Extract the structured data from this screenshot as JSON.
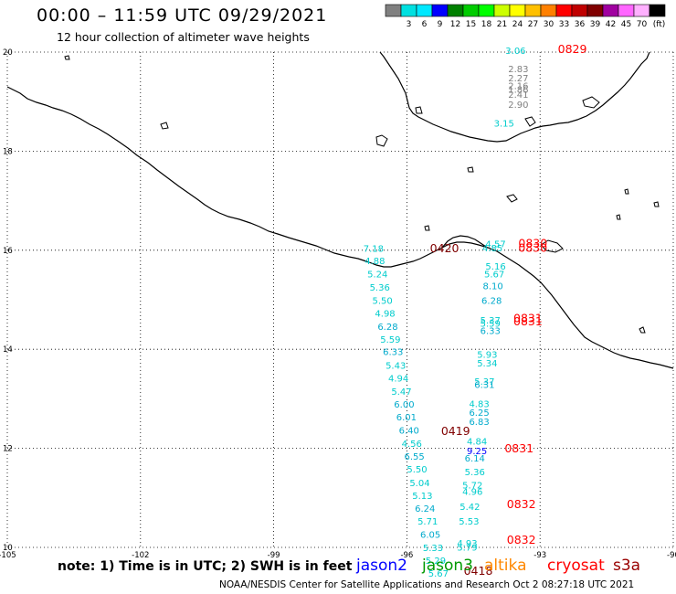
{
  "header": {
    "title": "00:00 – 11:59 UTC 09/29/2021",
    "subtitle": "12 hour collection of altimeter wave heights"
  },
  "colorbar": {
    "bins": [
      {
        "color": "#808080",
        "label": ""
      },
      {
        "color": "#00e0e0",
        "label": "3"
      },
      {
        "color": "#00e8ff",
        "label": "6"
      },
      {
        "color": "#0000ff",
        "label": "9"
      },
      {
        "color": "#008000",
        "label": "12"
      },
      {
        "color": "#00cc00",
        "label": "15"
      },
      {
        "color": "#00ff00",
        "label": "18"
      },
      {
        "color": "#ccff00",
        "label": "21"
      },
      {
        "color": "#ffff00",
        "label": "24"
      },
      {
        "color": "#ffc000",
        "label": "27"
      },
      {
        "color": "#ff8000",
        "label": "30"
      },
      {
        "color": "#ff0000",
        "label": "33"
      },
      {
        "color": "#c00000",
        "label": "36"
      },
      {
        "color": "#800000",
        "label": "39"
      },
      {
        "color": "#a000a0",
        "label": "42"
      },
      {
        "color": "#ff66ff",
        "label": "45"
      },
      {
        "color": "#ffb0ff",
        "label": "70"
      },
      {
        "color": "#000000",
        "label": "(ft)"
      }
    ]
  },
  "axes": {
    "lon_ticks": [
      {
        "value": -105,
        "label": "-105"
      },
      {
        "value": -102,
        "label": "-102"
      },
      {
        "value": -99,
        "label": "-99"
      },
      {
        "value": -96,
        "label": "-96"
      },
      {
        "value": -93,
        "label": "-93"
      },
      {
        "value": -90,
        "label": "-90"
      }
    ],
    "lat_ticks": [
      {
        "value": 10,
        "label": "10"
      },
      {
        "value": 12,
        "label": "12"
      },
      {
        "value": 14,
        "label": "14"
      },
      {
        "value": 16,
        "label": "16"
      },
      {
        "value": 18,
        "label": "18"
      },
      {
        "value": 20,
        "label": "20"
      }
    ]
  },
  "observations": [
    {
      "lon": -93.78,
      "lat": 19.96,
      "v": "3.06",
      "c": "#00cccc"
    },
    {
      "lon": -93.72,
      "lat": 19.59,
      "v": "2.83",
      "c": "#808080"
    },
    {
      "lon": -93.72,
      "lat": 19.41,
      "v": "2.27",
      "c": "#808080"
    },
    {
      "lon": -93.72,
      "lat": 19.25,
      "v": "2.16",
      "c": "#808080"
    },
    {
      "lon": -93.72,
      "lat": 19.18,
      "v": "1.86",
      "c": "#808080"
    },
    {
      "lon": -93.72,
      "lat": 19.08,
      "v": "2.41",
      "c": "#808080"
    },
    {
      "lon": -93.72,
      "lat": 18.87,
      "v": "2.90",
      "c": "#808080"
    },
    {
      "lon": -94.04,
      "lat": 18.5,
      "v": "3.15",
      "c": "#00cccc"
    },
    {
      "lon": -96.98,
      "lat": 15.97,
      "v": "7.18",
      "c": "#00cccc"
    },
    {
      "lon": -96.95,
      "lat": 15.72,
      "v": "4.88",
      "c": "#00cccc"
    },
    {
      "lon": -96.89,
      "lat": 15.45,
      "v": "5.24",
      "c": "#00cccc"
    },
    {
      "lon": -96.84,
      "lat": 15.18,
      "v": "5.36",
      "c": "#00cccc"
    },
    {
      "lon": -96.78,
      "lat": 14.92,
      "v": "5.50",
      "c": "#00cccc"
    },
    {
      "lon": -96.72,
      "lat": 14.66,
      "v": "4.98",
      "c": "#00cccc"
    },
    {
      "lon": -96.66,
      "lat": 14.39,
      "v": "6.28",
      "c": "#00aacc"
    },
    {
      "lon": -96.6,
      "lat": 14.13,
      "v": "5.59",
      "c": "#00cccc"
    },
    {
      "lon": -96.54,
      "lat": 13.88,
      "v": "6.33",
      "c": "#00aacc"
    },
    {
      "lon": -96.48,
      "lat": 13.61,
      "v": "5.43",
      "c": "#00cccc"
    },
    {
      "lon": -96.42,
      "lat": 13.35,
      "v": "4.94",
      "c": "#00cccc"
    },
    {
      "lon": -96.35,
      "lat": 13.08,
      "v": "5.47",
      "c": "#00cccc"
    },
    {
      "lon": -96.29,
      "lat": 12.82,
      "v": "6.00",
      "c": "#00aacc"
    },
    {
      "lon": -96.24,
      "lat": 12.56,
      "v": "6.01",
      "c": "#00aacc"
    },
    {
      "lon": -96.18,
      "lat": 12.3,
      "v": "6.40",
      "c": "#00aacc"
    },
    {
      "lon": -96.12,
      "lat": 12.03,
      "v": "4.56",
      "c": "#00cccc"
    },
    {
      "lon": -96.06,
      "lat": 11.77,
      "v": "6.55",
      "c": "#00aacc"
    },
    {
      "lon": -96.0,
      "lat": 11.51,
      "v": "5.50",
      "c": "#00cccc"
    },
    {
      "lon": -95.94,
      "lat": 11.24,
      "v": "5.04",
      "c": "#00cccc"
    },
    {
      "lon": -95.88,
      "lat": 10.98,
      "v": "5.13",
      "c": "#00cccc"
    },
    {
      "lon": -95.82,
      "lat": 10.72,
      "v": "6.24",
      "c": "#00aacc"
    },
    {
      "lon": -95.76,
      "lat": 10.46,
      "v": "5.71",
      "c": "#00cccc"
    },
    {
      "lon": -95.7,
      "lat": 10.19,
      "v": "6.05",
      "c": "#00aacc"
    },
    {
      "lon": -95.64,
      "lat": 9.93,
      "v": "5.33",
      "c": "#00cccc"
    },
    {
      "lon": -95.58,
      "lat": 9.67,
      "v": "5.29",
      "c": "#00cccc"
    },
    {
      "lon": -95.52,
      "lat": 9.41,
      "v": "5.67",
      "c": "#00cccc"
    },
    {
      "lon": -94.23,
      "lat": 16.06,
      "v": "4.57",
      "c": "#00cccc"
    },
    {
      "lon": -94.3,
      "lat": 15.98,
      "v": "4.85",
      "c": "#00cccc"
    },
    {
      "lon": -94.23,
      "lat": 15.61,
      "v": "5.16",
      "c": "#00cccc"
    },
    {
      "lon": -94.26,
      "lat": 15.45,
      "v": "5.67",
      "c": "#00cccc"
    },
    {
      "lon": -94.29,
      "lat": 15.21,
      "v": "8.10",
      "c": "#00aacc"
    },
    {
      "lon": -94.32,
      "lat": 14.92,
      "v": "6.28",
      "c": "#00aacc"
    },
    {
      "lon": -94.35,
      "lat": 14.52,
      "v": "5.37",
      "c": "#00cccc"
    },
    {
      "lon": -94.35,
      "lat": 14.46,
      "v": "5.59",
      "c": "#00cccc"
    },
    {
      "lon": -94.35,
      "lat": 14.31,
      "v": "6.33",
      "c": "#00aacc"
    },
    {
      "lon": -94.42,
      "lat": 13.83,
      "v": "5.93",
      "c": "#00cccc"
    },
    {
      "lon": -94.42,
      "lat": 13.65,
      "v": "5.34",
      "c": "#00cccc"
    },
    {
      "lon": -94.48,
      "lat": 13.28,
      "v": "5.37",
      "c": "#00cccc"
    },
    {
      "lon": -94.48,
      "lat": 13.22,
      "v": "6.31",
      "c": "#00aacc"
    },
    {
      "lon": -94.6,
      "lat": 12.83,
      "v": "4.83",
      "c": "#00cccc"
    },
    {
      "lon": -94.6,
      "lat": 12.66,
      "v": "6.25",
      "c": "#00aacc"
    },
    {
      "lon": -94.6,
      "lat": 12.47,
      "v": "6.83",
      "c": "#00aacc"
    },
    {
      "lon": -94.65,
      "lat": 12.08,
      "v": "4.84",
      "c": "#00cccc"
    },
    {
      "lon": -94.65,
      "lat": 11.88,
      "v": "9.25",
      "c": "#0000ff"
    },
    {
      "lon": -94.7,
      "lat": 11.73,
      "v": "6.14",
      "c": "#00aacc"
    },
    {
      "lon": -94.7,
      "lat": 11.46,
      "v": "5.36",
      "c": "#00cccc"
    },
    {
      "lon": -94.75,
      "lat": 11.19,
      "v": "5.72",
      "c": "#00cccc"
    },
    {
      "lon": -94.75,
      "lat": 11.06,
      "v": "4.96",
      "c": "#00cccc"
    },
    {
      "lon": -94.81,
      "lat": 10.76,
      "v": "5.42",
      "c": "#00cccc"
    },
    {
      "lon": -94.83,
      "lat": 10.46,
      "v": "5.53",
      "c": "#00cccc"
    },
    {
      "lon": -94.87,
      "lat": 10.02,
      "v": "4.93",
      "c": "#00cccc"
    },
    {
      "lon": -94.87,
      "lat": 9.94,
      "v": "5.79",
      "c": "#00cccc"
    }
  ],
  "time_labels": [
    {
      "lon": -92.6,
      "lat": 19.98,
      "t": "0829",
      "c": "#ff0000"
    },
    {
      "lon": -95.48,
      "lat": 15.96,
      "t": "0420",
      "c": "#800000"
    },
    {
      "lon": -93.49,
      "lat": 16.06,
      "t": "0830",
      "c": "#ff0000"
    },
    {
      "lon": -93.49,
      "lat": 15.97,
      "t": "0830",
      "c": "#ff0000"
    },
    {
      "lon": -93.6,
      "lat": 14.55,
      "t": "0831",
      "c": "#ff0000"
    },
    {
      "lon": -93.6,
      "lat": 14.48,
      "t": "0831",
      "c": "#ff0000"
    },
    {
      "lon": -95.23,
      "lat": 12.27,
      "t": "0419",
      "c": "#800000"
    },
    {
      "lon": -93.8,
      "lat": 11.92,
      "t": "0831",
      "c": "#ff0000"
    },
    {
      "lon": -93.75,
      "lat": 10.79,
      "t": "0832",
      "c": "#ff0000"
    },
    {
      "lon": -93.75,
      "lat": 10.07,
      "t": "0832",
      "c": "#ff0000"
    },
    {
      "lon": -94.72,
      "lat": 9.45,
      "t": "0418",
      "c": "#800000"
    }
  ],
  "footer": {
    "note": "note:  1) Time is in UTC;  2) SWH is in feet",
    "satellites": [
      {
        "name": "jason2",
        "color": "#0000ff"
      },
      {
        "name": "jason3",
        "color": "#009900"
      },
      {
        "name": "altika",
        "color": "#ff8800"
      },
      {
        "name": "cryosat",
        "color": "#ff0000"
      },
      {
        "name": "s3a",
        "color": "#990000"
      }
    ],
    "credit": "NOAA/NESDIS Center for Satellite Applications and Research   Oct  2 08:27:18 UTC 2021"
  }
}
